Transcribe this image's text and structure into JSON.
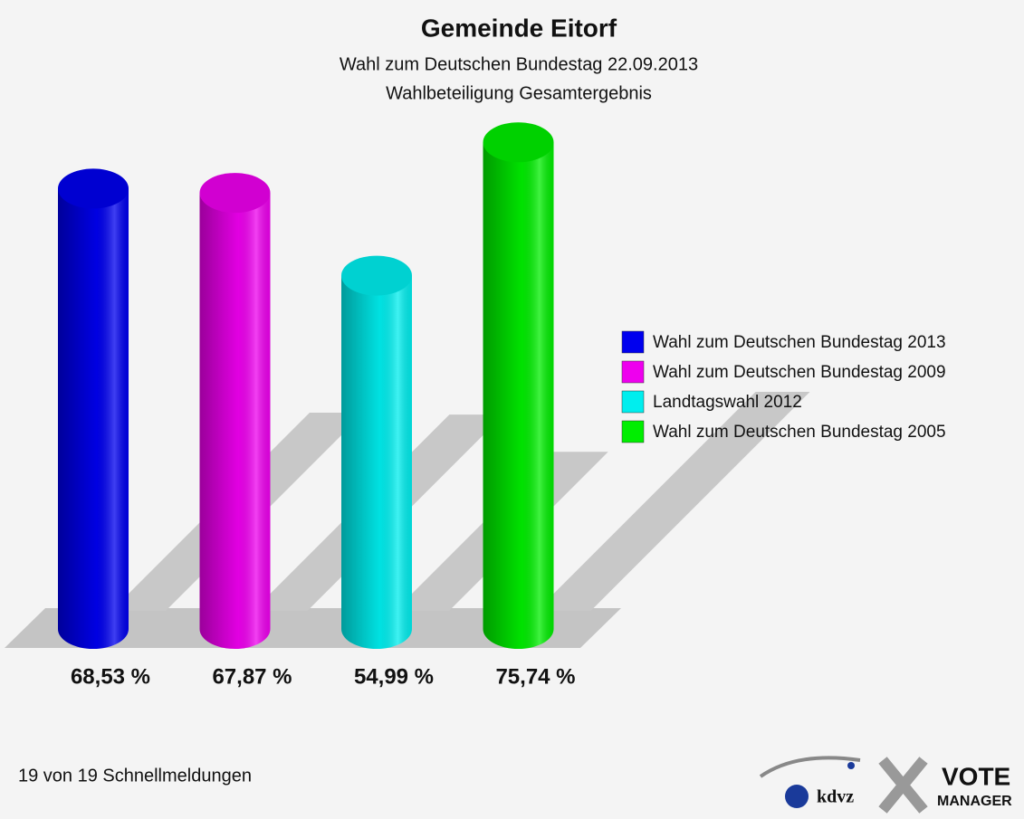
{
  "chart_data": {
    "type": "cylinder_bar",
    "title": "Gemeinde Eitorf",
    "subtitle": [
      "Wahl zum Deutschen Bundestag 22.09.2013",
      "Wahlbeteiligung Gesamtergebnis"
    ],
    "ylim": [
      0,
      80
    ],
    "series": [
      {
        "name": "Wahl zum Deutschen Bundestag 2013",
        "color": "#0000ee",
        "values": [
          68.53
        ],
        "value_labels": [
          "68,53 %"
        ]
      },
      {
        "name": "Wahl zum Deutschen Bundestag 2009",
        "color": "#ee00ee",
        "values": [
          67.87
        ],
        "value_labels": [
          "67,87 %"
        ]
      },
      {
        "name": "Landtagswahl 2012",
        "color": "#00eeee",
        "values": [
          54.99
        ],
        "value_labels": [
          "54,99 %"
        ]
      },
      {
        "name": "Wahl zum Deutschen Bundestag 2005",
        "color": "#00ee00",
        "values": [
          75.74
        ],
        "value_labels": [
          "75,74 %"
        ]
      }
    ],
    "legend": "right"
  },
  "footer": {
    "note": "19 von 19 Schnellmeldungen",
    "logo_texts": [
      "kdvz",
      "VOTE",
      "MANAGER"
    ]
  }
}
